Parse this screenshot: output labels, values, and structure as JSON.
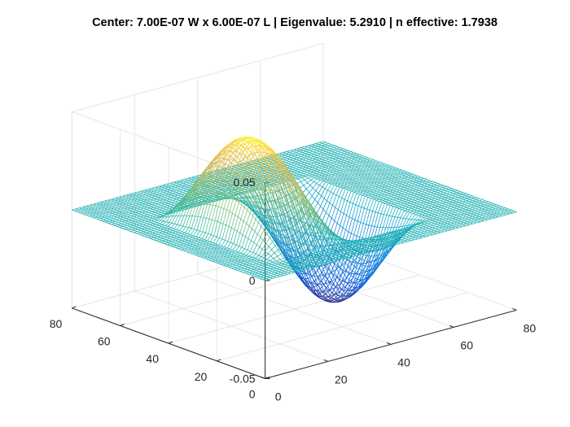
{
  "chart_data": {
    "type": "surface",
    "render": "mesh",
    "colormap": "parula",
    "title": "Center: 7.00E-07 W x 6.00E-07 L | Eigenvalue: 5.2910 | n effective: 1.7938",
    "xlabel": "",
    "ylabel": "",
    "zlabel": "",
    "grid": true,
    "box": false,
    "view": {
      "azimuth": -37.5,
      "elevation": 30
    },
    "xlim": [
      0,
      80
    ],
    "ylim": [
      0,
      80
    ],
    "zlim": [
      -0.05,
      0.05
    ],
    "x_ticks": [
      "0",
      "20",
      "40",
      "60",
      "80"
    ],
    "y_ticks": [
      "0",
      "20",
      "40",
      "60",
      "80"
    ],
    "z_ticks": [
      "-0.05",
      "0",
      "0.05"
    ],
    "grid_points": [
      70,
      70
    ],
    "core_region": {
      "x": [
        10,
        60
      ],
      "y": [
        10,
        60
      ]
    },
    "mode_peak": 0.047,
    "mode_trough": -0.047,
    "mode_shape": "sin(2*pi*(x-10)/50) * sin(pi*(y-10)/50)"
  }
}
